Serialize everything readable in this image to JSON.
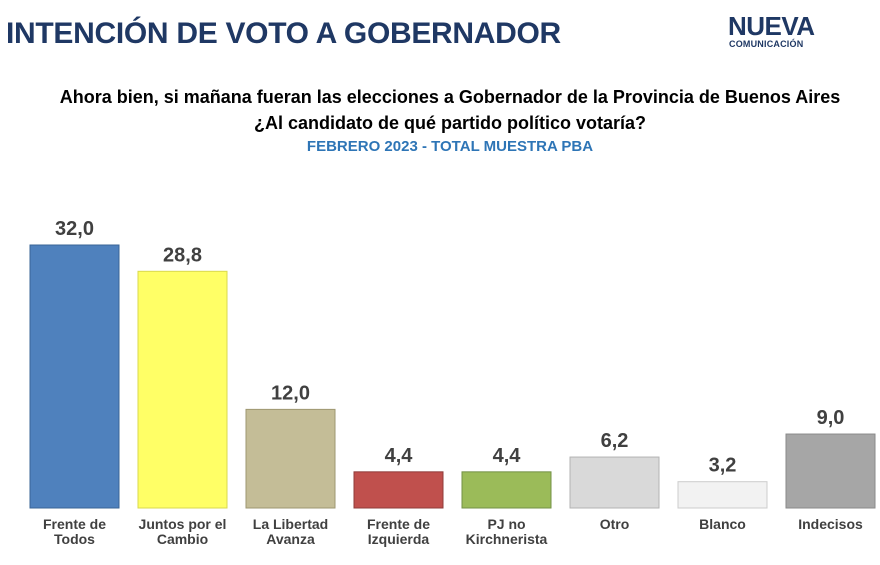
{
  "header": {
    "title": "INTENCIÓN DE VOTO A GOBERNADOR",
    "logo_main": "NUEVA",
    "logo_sub": "COMUNICACIÓN"
  },
  "question": {
    "line1": "Ahora bien, si mañana fueran las elecciones a Gobernador de la Provincia de Buenos Aires",
    "line2": "¿Al candidato de qué partido político votaría?"
  },
  "subtitle": "FEBRERO 2023 - TOTAL MUESTRA PBA",
  "chart_data": {
    "type": "bar",
    "title": "INTENCIÓN DE VOTO A GOBERNADOR",
    "xlabel": "",
    "ylabel": "",
    "ylim": [
      0,
      32
    ],
    "grid": false,
    "categories": [
      [
        "Frente de",
        "Todos"
      ],
      [
        "Juntos por el",
        "Cambio"
      ],
      [
        "La Libertad",
        "Avanza"
      ],
      [
        "Frente de",
        "Izquierda"
      ],
      [
        "PJ no",
        "Kirchnerista"
      ],
      [
        "Otro"
      ],
      [
        "Blanco"
      ],
      [
        "Indecisos"
      ]
    ],
    "values": [
      32.0,
      28.8,
      12.0,
      4.4,
      4.4,
      6.2,
      3.2,
      9.0
    ],
    "value_labels": [
      "32,0",
      "28,8",
      "12,0",
      "4,4",
      "4,4",
      "6,2",
      "3,2",
      "9,0"
    ],
    "colors": [
      "#4f81bd",
      "#ffff66",
      "#c4bd97",
      "#c0504d",
      "#9bbb59",
      "#d9d9d9",
      "#f2f2f2",
      "#a6a6a6"
    ],
    "edge_colors": [
      "#3a6496",
      "#d9d94d",
      "#9e9772",
      "#8f3b39",
      "#739146",
      "#b3b3b3",
      "#cccccc",
      "#8a8a8a"
    ]
  }
}
